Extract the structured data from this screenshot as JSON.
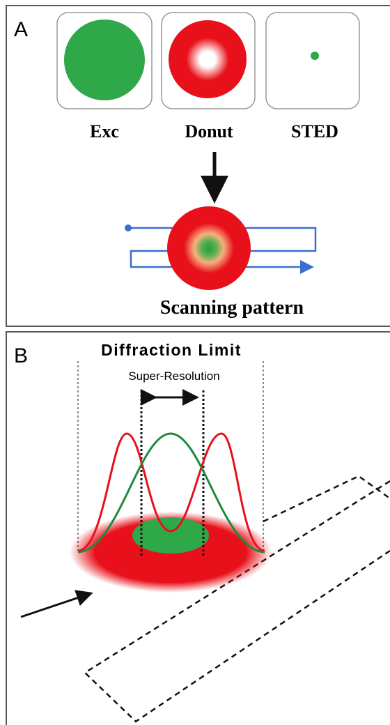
{
  "panel_a": {
    "label": "A",
    "spots": [
      "Exc",
      "Donut",
      "STED"
    ],
    "caption": "Scanning pattern"
  },
  "panel_b": {
    "label": "B",
    "title": "Diffraction Limit",
    "subtitle": "Super-Resolution"
  }
}
